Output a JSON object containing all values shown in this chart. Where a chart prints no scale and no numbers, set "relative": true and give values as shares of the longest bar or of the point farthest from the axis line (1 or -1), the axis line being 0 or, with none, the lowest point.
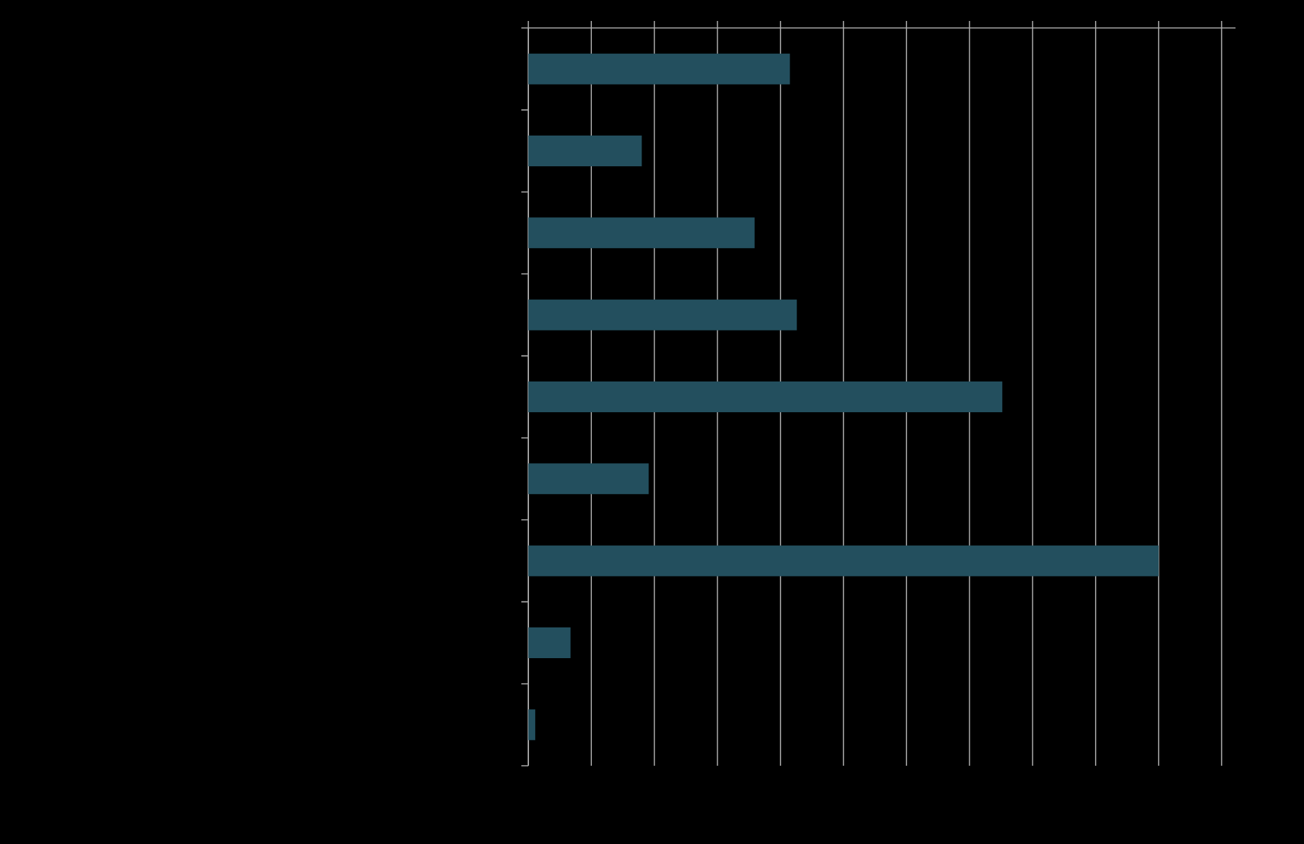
{
  "chart_data": {
    "type": "bar",
    "orientation": "horizontal",
    "relative": true,
    "grid": "x",
    "color": "#234f5e",
    "categories": [
      null,
      null,
      null,
      null,
      null,
      null,
      null,
      null,
      null
    ],
    "values": [
      0.415,
      0.18,
      0.359,
      0.426,
      0.752,
      0.191,
      1,
      0.067,
      0.011
    ]
  }
}
